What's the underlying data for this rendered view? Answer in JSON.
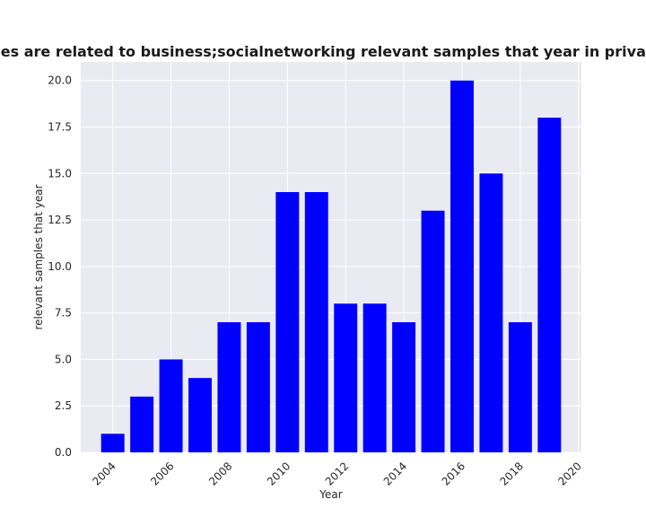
{
  "chart_data": {
    "type": "bar",
    "title": "Categories are related to business;socialnetworking relevant samples that year in privacy policies",
    "xlabel": "Year",
    "ylabel": "relevant samples that year",
    "x": [
      2004,
      2005,
      2006,
      2007,
      2008,
      2009,
      2010,
      2011,
      2012,
      2013,
      2014,
      2015,
      2016,
      2017,
      2018,
      2019
    ],
    "values": [
      1,
      3,
      5,
      4,
      7,
      7,
      14,
      14,
      8,
      8,
      7,
      13,
      20,
      15,
      7,
      18
    ],
    "xlim": [
      2002.9,
      2020.1
    ],
    "ylim": [
      0,
      21
    ],
    "xticks": [
      "2004",
      "2006",
      "2008",
      "2010",
      "2012",
      "2014",
      "2016",
      "2018",
      "2020"
    ],
    "yticks": [
      "0.0",
      "2.5",
      "5.0",
      "7.5",
      "10.0",
      "12.5",
      "15.0",
      "17.5",
      "20.0"
    ],
    "bar_color": "#0000ff",
    "grid": true,
    "background": "#eaeaf2",
    "grid_color": "#ffffff",
    "legend": "none"
  }
}
